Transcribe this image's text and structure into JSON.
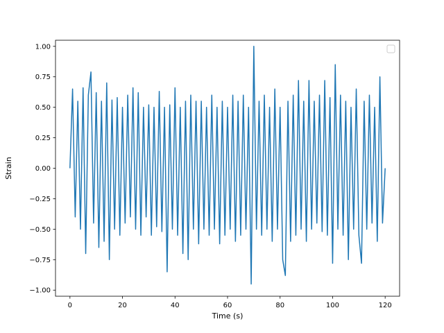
{
  "chart_data": {
    "type": "line",
    "title": "",
    "xlabel": "Time (s)",
    "ylabel": "Strain",
    "xlim": [
      -5.5,
      125.5
    ],
    "ylim": [
      -1.05,
      1.05
    ],
    "x_ticks": [
      0,
      20,
      40,
      60,
      80,
      100,
      120
    ],
    "x_tick_labels": [
      "0",
      "20",
      "40",
      "60",
      "80",
      "100",
      "120"
    ],
    "y_ticks": [
      -1.0,
      -0.75,
      -0.5,
      -0.25,
      0.0,
      0.25,
      0.5,
      0.75,
      1.0
    ],
    "y_tick_labels": [
      "−1.00",
      "−0.75",
      "−0.50",
      "−0.25",
      "0.00",
      "0.25",
      "0.50",
      "0.75",
      "1.00"
    ],
    "grid": false,
    "legend": {
      "location": "upper right",
      "entries": []
    },
    "series": [
      {
        "color": "#1f77b4",
        "x": [
          0.0,
          1.0,
          2.0,
          3.0,
          4.0,
          5.0,
          6.0,
          7.0,
          8.0,
          9.0,
          10.0,
          11.0,
          12.0,
          13.0,
          14.0,
          15.0,
          16.0,
          17.0,
          18.0,
          19.0,
          20.0,
          21.0,
          22.0,
          23.0,
          24.0,
          25.0,
          26.0,
          27.0,
          28.0,
          29.0,
          30.0,
          31.0,
          32.0,
          33.0,
          34.0,
          35.0,
          36.0,
          37.0,
          38.0,
          39.0,
          40.0,
          41.0,
          42.0,
          43.0,
          44.0,
          45.0,
          46.0,
          47.0,
          48.0,
          49.0,
          50.0,
          51.0,
          52.0,
          53.0,
          54.0,
          55.0,
          56.0,
          57.0,
          58.0,
          59.0,
          60.0,
          61.0,
          62.0,
          63.0,
          64.0,
          65.0,
          66.0,
          67.0,
          68.0,
          69.0,
          70.0,
          71.0,
          72.0,
          73.0,
          74.0,
          75.0,
          76.0,
          77.0,
          78.0,
          79.0,
          80.0,
          81.0,
          82.0,
          83.0,
          84.0,
          85.0,
          86.0,
          87.0,
          88.0,
          89.0,
          90.0,
          91.0,
          92.0,
          93.0,
          94.0,
          95.0,
          96.0,
          97.0,
          98.0,
          99.0,
          100.0,
          101.0,
          102.0,
          103.0,
          104.0,
          105.0,
          106.0,
          107.0,
          108.0,
          109.0,
          110.0,
          111.0,
          112.0,
          113.0,
          114.0,
          115.0,
          116.0,
          117.0,
          118.0,
          119.0,
          120.0
        ],
        "y": [
          0.0,
          0.65,
          -0.4,
          0.55,
          -0.5,
          0.66,
          -0.7,
          0.6,
          0.79,
          -0.45,
          0.62,
          -0.65,
          0.55,
          -0.6,
          0.7,
          -0.75,
          0.56,
          -0.5,
          0.58,
          -0.55,
          0.5,
          -0.45,
          0.6,
          -0.4,
          0.66,
          -0.5,
          0.62,
          -0.55,
          0.5,
          -0.4,
          0.52,
          -0.55,
          0.5,
          -0.48,
          0.63,
          -0.52,
          0.5,
          -0.85,
          0.52,
          -0.5,
          0.66,
          -0.55,
          0.5,
          -0.7,
          0.55,
          -0.75,
          0.6,
          -0.5,
          0.55,
          -0.62,
          0.55,
          -0.5,
          0.5,
          -0.55,
          0.6,
          -0.5,
          0.5,
          -0.62,
          0.55,
          -0.55,
          0.5,
          -0.5,
          0.6,
          -0.6,
          0.55,
          -0.55,
          0.6,
          -0.5,
          0.5,
          -0.95,
          1.0,
          -0.5,
          0.55,
          -0.55,
          0.6,
          -0.5,
          0.5,
          -0.6,
          0.65,
          -0.5,
          0.5,
          -0.75,
          -0.88,
          0.55,
          -0.6,
          0.6,
          -0.55,
          0.72,
          -0.5,
          0.55,
          -0.6,
          0.72,
          -0.5,
          0.55,
          -0.45,
          0.6,
          -0.52,
          0.72,
          -0.55,
          0.58,
          -0.78,
          0.85,
          -0.5,
          0.6,
          -0.55,
          0.55,
          -0.75,
          0.5,
          -0.5,
          0.65,
          -0.55,
          -0.78,
          0.55,
          -0.5,
          0.6,
          -0.45,
          0.5,
          -0.6,
          0.75,
          -0.45,
          0.0
        ]
      }
    ]
  }
}
